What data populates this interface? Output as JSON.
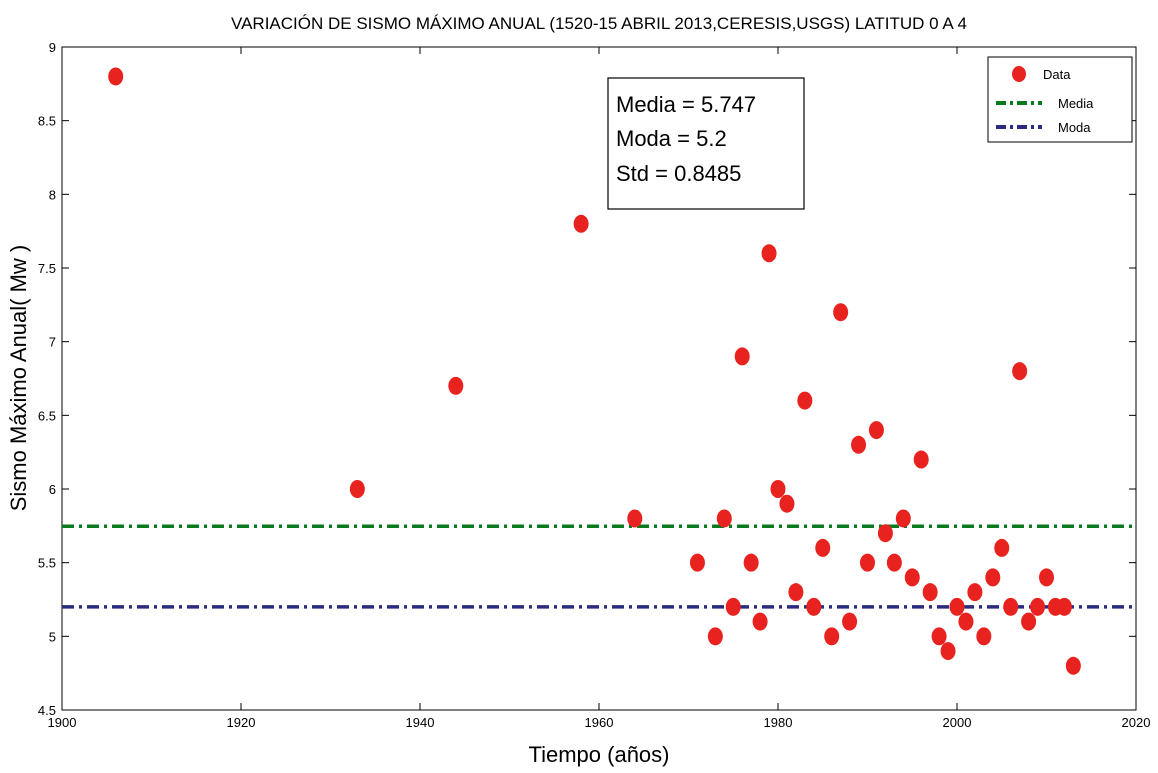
{
  "chart_data": {
    "type": "scatter",
    "title": "VARIACIÓN DE SISMO MÁXIMO ANUAL (1520-15 ABRIL 2013,CERESIS,USGS) LATITUD 0 A 4",
    "xlabel": "Tiempo (años)",
    "ylabel": "Sismo Máximo Anual( Mw )",
    "xlim": [
      1900,
      2020
    ],
    "ylim": [
      4.5,
      9
    ],
    "xticks": [
      "1900",
      "1920",
      "1940",
      "1960",
      "1980",
      "2000",
      "2020"
    ],
    "yticks": [
      "4.5",
      "5",
      "5.5",
      "6",
      "6.5",
      "7",
      "7.5",
      "8",
      "8.5",
      "9"
    ],
    "grid": false,
    "legend_position": "top-right",
    "series": [
      {
        "name": "Data",
        "color": "#e8231f",
        "points": [
          [
            1906,
            8.8
          ],
          [
            1933,
            6.0
          ],
          [
            1944,
            6.7
          ],
          [
            1958,
            7.8
          ],
          [
            1964,
            5.8
          ],
          [
            1971,
            5.5
          ],
          [
            1973,
            5.0
          ],
          [
            1974,
            5.8
          ],
          [
            1975,
            5.2
          ],
          [
            1976,
            6.9
          ],
          [
            1977,
            5.5
          ],
          [
            1978,
            5.1
          ],
          [
            1979,
            7.6
          ],
          [
            1980,
            6.0
          ],
          [
            1981,
            5.9
          ],
          [
            1982,
            5.3
          ],
          [
            1983,
            6.6
          ],
          [
            1984,
            5.2
          ],
          [
            1985,
            5.6
          ],
          [
            1986,
            5.0
          ],
          [
            1987,
            7.2
          ],
          [
            1988,
            5.1
          ],
          [
            1989,
            6.3
          ],
          [
            1990,
            5.5
          ],
          [
            1991,
            6.4
          ],
          [
            1992,
            5.7
          ],
          [
            1993,
            5.5
          ],
          [
            1994,
            5.8
          ],
          [
            1995,
            5.4
          ],
          [
            1996,
            6.2
          ],
          [
            1997,
            5.3
          ],
          [
            1998,
            5.0
          ],
          [
            1999,
            4.9
          ],
          [
            2000,
            5.2
          ],
          [
            2001,
            5.1
          ],
          [
            2002,
            5.3
          ],
          [
            2003,
            5.0
          ],
          [
            2004,
            5.4
          ],
          [
            2005,
            5.6
          ],
          [
            2006,
            5.2
          ],
          [
            2007,
            6.8
          ],
          [
            2008,
            5.1
          ],
          [
            2009,
            5.2
          ],
          [
            2010,
            5.4
          ],
          [
            2011,
            5.2
          ],
          [
            2012,
            5.2
          ],
          [
            2013,
            4.8
          ]
        ]
      },
      {
        "name": "Media",
        "type": "hline",
        "y": 5.747,
        "color": "#0a7a1e"
      },
      {
        "name": "Moda",
        "type": "hline",
        "y": 5.2,
        "color": "#2b2b80"
      }
    ],
    "stats_box": [
      "Media = 5.747",
      "Moda = 5.2",
      "Std = 0.8485"
    ],
    "legend": [
      "Data",
      "Media",
      "Moda"
    ]
  }
}
